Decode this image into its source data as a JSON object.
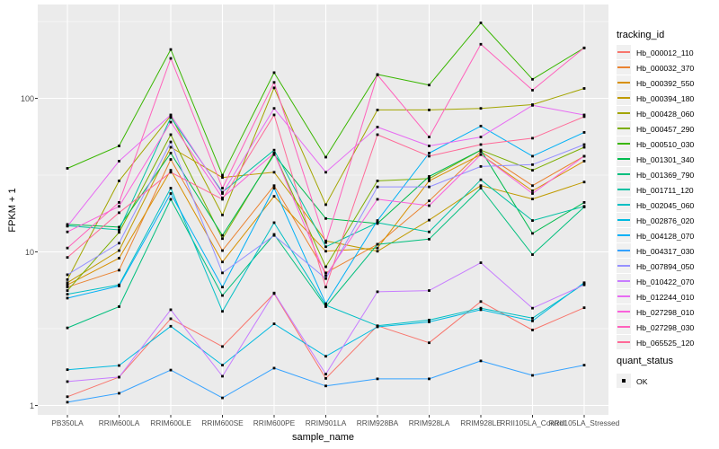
{
  "chart_data": {
    "type": "line",
    "scale_y": "log10",
    "title": "",
    "xlabel": "sample_name",
    "ylabel": "FPKM + 1",
    "ylim": [
      0.87,
      408
    ],
    "yticks": [
      1,
      10,
      100
    ],
    "ytick_labels": [
      "1",
      "10",
      "100"
    ],
    "yminor": [
      3.1623,
      31.623,
      316.23
    ],
    "grid": "on",
    "legend_position": "right",
    "panel_bg": "#EBEBEB",
    "grid_color": "#FFFFFF",
    "tick_color": "#333333",
    "axis_text_color": "#4D4D4D",
    "point_marker": "black-square",
    "categories": [
      "PB350LA",
      "RRIM600LA",
      "RRIM600LE",
      "RRIM600SE",
      "RRIM600PE",
      "RRIM901LA",
      "RRIM928BA",
      "RRIM928LA",
      "RRIM928LE",
      "RRII105LA_Control",
      "RRII105LA_Stressed"
    ],
    "series": [
      {
        "name": "Hb_000012_110",
        "color": "#F8766D",
        "values": [
          1.14,
          1.53,
          3.67,
          2.42,
          5.35,
          1.5,
          3.3,
          2.56,
          4.75,
          3.1,
          4.33
        ]
      },
      {
        "name": "Hb_000032_370",
        "color": "#EA8331",
        "values": [
          5.9,
          7.6,
          40,
          10.2,
          27,
          7.3,
          11.2,
          21.5,
          45,
          27,
          42
        ]
      },
      {
        "name": "Hb_000392_550",
        "color": "#D89000",
        "values": [
          6.1,
          9.1,
          34,
          8.6,
          23,
          10.1,
          10.6,
          29,
          43,
          25,
          39
        ]
      },
      {
        "name": "Hb_000394_180",
        "color": "#C09B00",
        "values": [
          6.3,
          10.2,
          48,
          30.5,
          33,
          11.8,
          10.1,
          16.1,
          27,
          22.1,
          28.5
        ]
      },
      {
        "name": "Hb_000428_060",
        "color": "#A3A500",
        "values": [
          6.6,
          29,
          77,
          17.4,
          117,
          20.3,
          84,
          84,
          86,
          91,
          116
        ]
      },
      {
        "name": "Hb_000457_290",
        "color": "#7CAE00",
        "values": [
          5.6,
          13.4,
          58,
          12.2,
          44,
          8.0,
          29,
          30,
          46,
          34,
          48
        ]
      },
      {
        "name": "Hb_000510_030",
        "color": "#39B600",
        "values": [
          35,
          49,
          208,
          31.6,
          147,
          41.4,
          143,
          122,
          310,
          133,
          213
        ]
      },
      {
        "name": "Hb_001301_340",
        "color": "#00BB4E",
        "values": [
          15.1,
          14.5,
          44,
          12.8,
          43,
          16.5,
          15.3,
          31,
          46,
          13.2,
          21
        ]
      },
      {
        "name": "Hb_001369_790",
        "color": "#00BF7D",
        "values": [
          3.2,
          4.4,
          22,
          5.2,
          13,
          4.4,
          11.2,
          12.1,
          26,
          9.6,
          19.6
        ]
      },
      {
        "name": "Hb_001711_120",
        "color": "#00C1A3",
        "values": [
          14.8,
          13.9,
          75,
          24.5,
          46,
          10.8,
          15.5,
          13.5,
          29.5,
          16,
          19.8
        ]
      },
      {
        "name": "Hb_002045_060",
        "color": "#00BFC4",
        "values": [
          5.3,
          6.1,
          26,
          4.1,
          15.5,
          4.5,
          3.3,
          3.6,
          4.3,
          3.7,
          6.2
        ]
      },
      {
        "name": "Hb_002876_020",
        "color": "#00BAE0",
        "values": [
          1.71,
          1.82,
          3.28,
          1.83,
          3.4,
          2.09,
          3.25,
          3.5,
          4.2,
          3.55,
          6.3
        ]
      },
      {
        "name": "Hb_004128_070",
        "color": "#00B0F6",
        "values": [
          5.0,
          6.0,
          24,
          5.9,
          26,
          4.6,
          16,
          44,
          66,
          42,
          60
        ]
      },
      {
        "name": "Hb_004317_030",
        "color": "#35A2FF",
        "values": [
          1.05,
          1.2,
          1.7,
          1.12,
          1.75,
          1.34,
          1.49,
          1.49,
          1.95,
          1.57,
          1.83
        ]
      },
      {
        "name": "Hb_007894_050",
        "color": "#9590FF",
        "values": [
          7.1,
          11.4,
          52,
          7.3,
          12.8,
          6.7,
          26.5,
          26.5,
          36,
          37,
          50
        ]
      },
      {
        "name": "Hb_010422_070",
        "color": "#C77CFF",
        "values": [
          1.43,
          1.53,
          4.2,
          1.55,
          5.4,
          1.6,
          5.5,
          5.6,
          8.5,
          4.3,
          6.1
        ]
      },
      {
        "name": "Hb_012244_010",
        "color": "#E76BF3",
        "values": [
          14.7,
          39,
          78,
          24,
          86,
          33,
          65,
          49,
          56,
          90,
          78
        ]
      },
      {
        "name": "Hb_027298_010",
        "color": "#FA62DB",
        "values": [
          13.5,
          19.8,
          70,
          22.5,
          44,
          7.0,
          22,
          20,
          43,
          24,
          42
        ]
      },
      {
        "name": "Hb_027298_030",
        "color": "#FF62BC",
        "values": [
          10.6,
          21,
          182,
          26,
          127,
          11.5,
          142,
          56,
          225,
          113,
          213
        ]
      },
      {
        "name": "Hb_065525_120",
        "color": "#FF6A98",
        "values": [
          9.2,
          18,
          33,
          22,
          78,
          5.9,
          58,
          42,
          50,
          55,
          76
        ]
      }
    ],
    "color_legend": {
      "title": "tracking_id"
    },
    "quant_legend": {
      "title": "quant_status",
      "items": [
        {
          "label": "OK",
          "marker": "black-square"
        }
      ]
    }
  }
}
